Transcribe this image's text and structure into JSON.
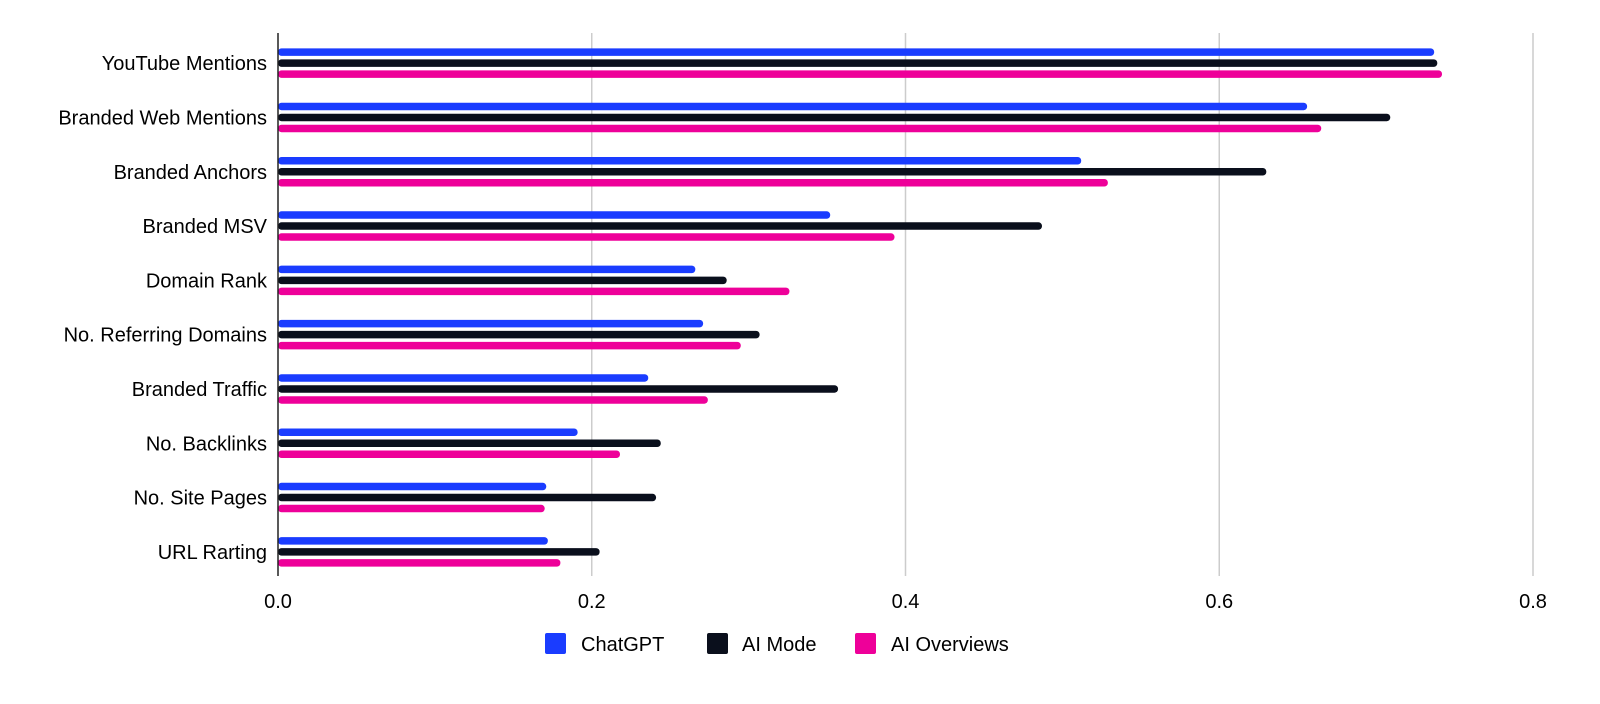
{
  "chart_data": {
    "type": "bar",
    "orientation": "horizontal",
    "categories": [
      "YouTube Mentions",
      "Branded Web Mentions",
      "Branded Anchors",
      "Branded MSV",
      "Domain Rank",
      "No. Referring Domains",
      "Branded Traffic",
      "No. Backlinks",
      "No. Site Pages",
      "URL Rarting"
    ],
    "series": [
      {
        "name": "ChatGPT",
        "color": "#1a3cff",
        "values": [
          0.737,
          0.656,
          0.512,
          0.352,
          0.266,
          0.271,
          0.236,
          0.191,
          0.171,
          0.172
        ]
      },
      {
        "name": "AI Mode",
        "color": "#0a0f1c",
        "values": [
          0.739,
          0.709,
          0.63,
          0.487,
          0.286,
          0.307,
          0.357,
          0.244,
          0.241,
          0.205
        ]
      },
      {
        "name": "AI Overviews",
        "color": "#ee0099",
        "values": [
          0.742,
          0.665,
          0.529,
          0.393,
          0.326,
          0.295,
          0.274,
          0.218,
          0.17,
          0.18
        ]
      }
    ],
    "xlim": [
      0,
      0.8
    ],
    "xticks": [
      "0.0",
      "0.2",
      "0.4",
      "0.6",
      "0.8"
    ],
    "title": "",
    "xlabel": "",
    "ylabel": "",
    "grid": "vertical",
    "legend_position": "bottom"
  }
}
